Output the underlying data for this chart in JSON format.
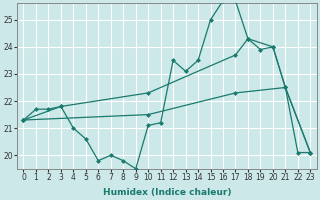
{
  "xlabel": "Humidex (Indice chaleur)",
  "bg_color": "#cce8e8",
  "line_color": "#1a7a6e",
  "grid_color": "#ffffff",
  "xlim": [
    -0.5,
    23.5
  ],
  "ylim": [
    19.5,
    25.6
  ],
  "yticks": [
    20,
    21,
    22,
    23,
    24,
    25
  ],
  "xticks": [
    0,
    1,
    2,
    3,
    4,
    5,
    6,
    7,
    8,
    9,
    10,
    11,
    12,
    13,
    14,
    15,
    16,
    17,
    18,
    19,
    20,
    21,
    22,
    23
  ],
  "series": [
    {
      "x": [
        0,
        1,
        2,
        3,
        4,
        5,
        6,
        7,
        8,
        9,
        10,
        11,
        12,
        13,
        14,
        15,
        16,
        17,
        18,
        19,
        20,
        21,
        22,
        23
      ],
      "y": [
        21.3,
        21.7,
        21.7,
        21.8,
        21.0,
        20.6,
        19.8,
        20.0,
        19.8,
        19.5,
        21.1,
        21.2,
        23.5,
        23.1,
        23.5,
        25.0,
        25.7,
        25.7,
        24.3,
        23.9,
        24.0,
        22.5,
        20.1,
        20.1
      ]
    },
    {
      "x": [
        0,
        3,
        10,
        17,
        18,
        20,
        21,
        23
      ],
      "y": [
        21.3,
        21.8,
        22.3,
        23.7,
        24.3,
        24.0,
        22.5,
        20.1
      ]
    },
    {
      "x": [
        0,
        10,
        17,
        21,
        23
      ],
      "y": [
        21.3,
        21.5,
        22.3,
        22.5,
        20.1
      ]
    }
  ]
}
